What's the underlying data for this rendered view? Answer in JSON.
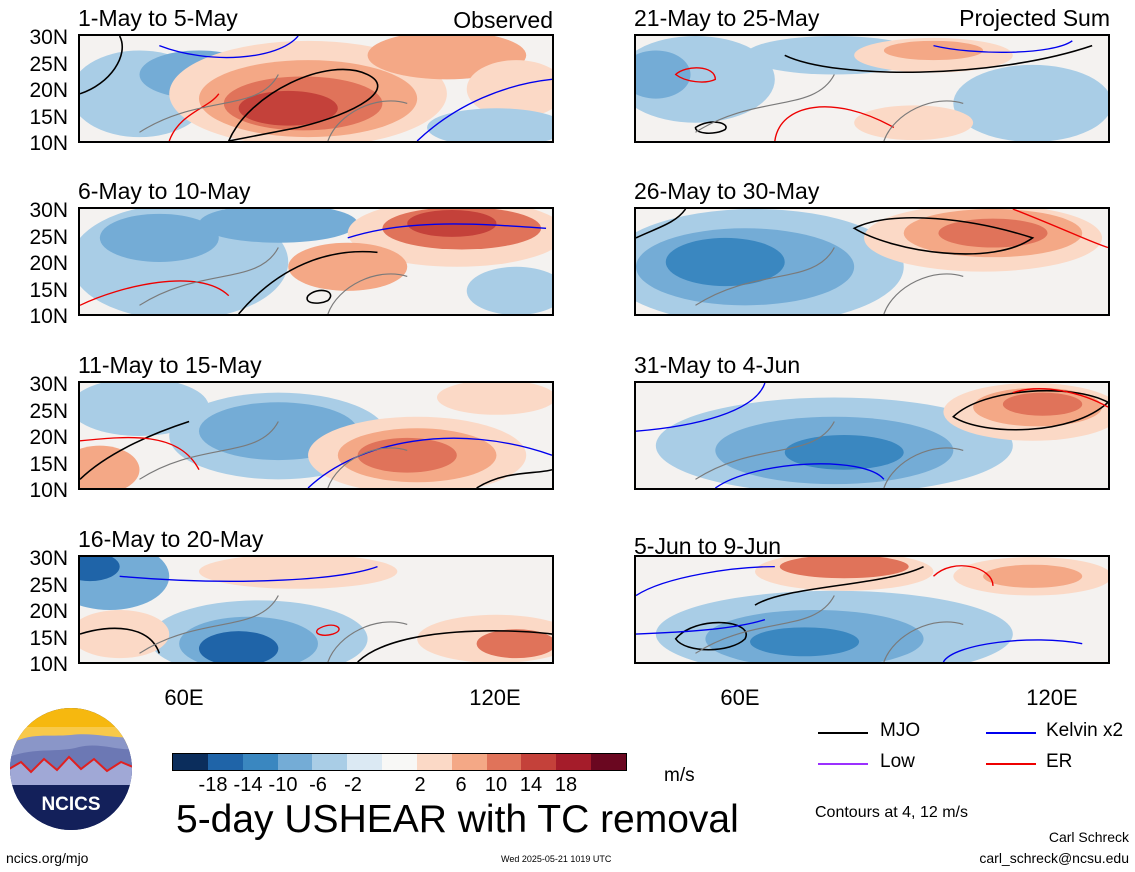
{
  "panels": [
    {
      "title": "1-May to 5-May",
      "tag": "Observed"
    },
    {
      "title": "6-May to 10-May",
      "tag": ""
    },
    {
      "title": "11-May to 15-May",
      "tag": ""
    },
    {
      "title": "16-May to 20-May",
      "tag": ""
    },
    {
      "title": "21-May to 25-May",
      "tag": "Projected Sum"
    },
    {
      "title": "26-May to 30-May",
      "tag": ""
    },
    {
      "title": "31-May to 4-Jun",
      "tag": ""
    },
    {
      "title": "5-Jun to 9-Jun",
      "tag": ""
    }
  ],
  "lat_labels": [
    "30N",
    "25N",
    "20N",
    "15N",
    "10N"
  ],
  "lon_labels": [
    "60E",
    "120E"
  ],
  "colorbar": {
    "ticks": [
      "-18",
      "-14",
      "-10",
      "-6",
      "-2",
      "2",
      "6",
      "10",
      "14",
      "18"
    ],
    "colors": [
      "#0b2d5c",
      "#1f64a8",
      "#3a87c0",
      "#74acd6",
      "#a9cde6",
      "#dbe9f3",
      "#f8f8f6",
      "#fbd9c6",
      "#f4a886",
      "#e0735a",
      "#c4413a",
      "#a51c2a",
      "#6a0720"
    ],
    "unit": "m/s"
  },
  "legend": [
    {
      "label": "MJO",
      "color": "#000000"
    },
    {
      "label": "Kelvin x2",
      "color": "#0000ee"
    },
    {
      "label": "Low",
      "color": "#9b30ff"
    },
    {
      "label": "ER",
      "color": "#ee0000"
    }
  ],
  "main_title": "5-day USHEAR with TC removal",
  "contours_note": "Contours at 4, 12 m/s",
  "logo_text": "NCICS",
  "site": "ncics.org/mjo",
  "timestamp": "Wed 2025-05-21 1019 UTC",
  "author": "Carl Schreck",
  "email": "carl_schreck@ncsu.edu"
}
